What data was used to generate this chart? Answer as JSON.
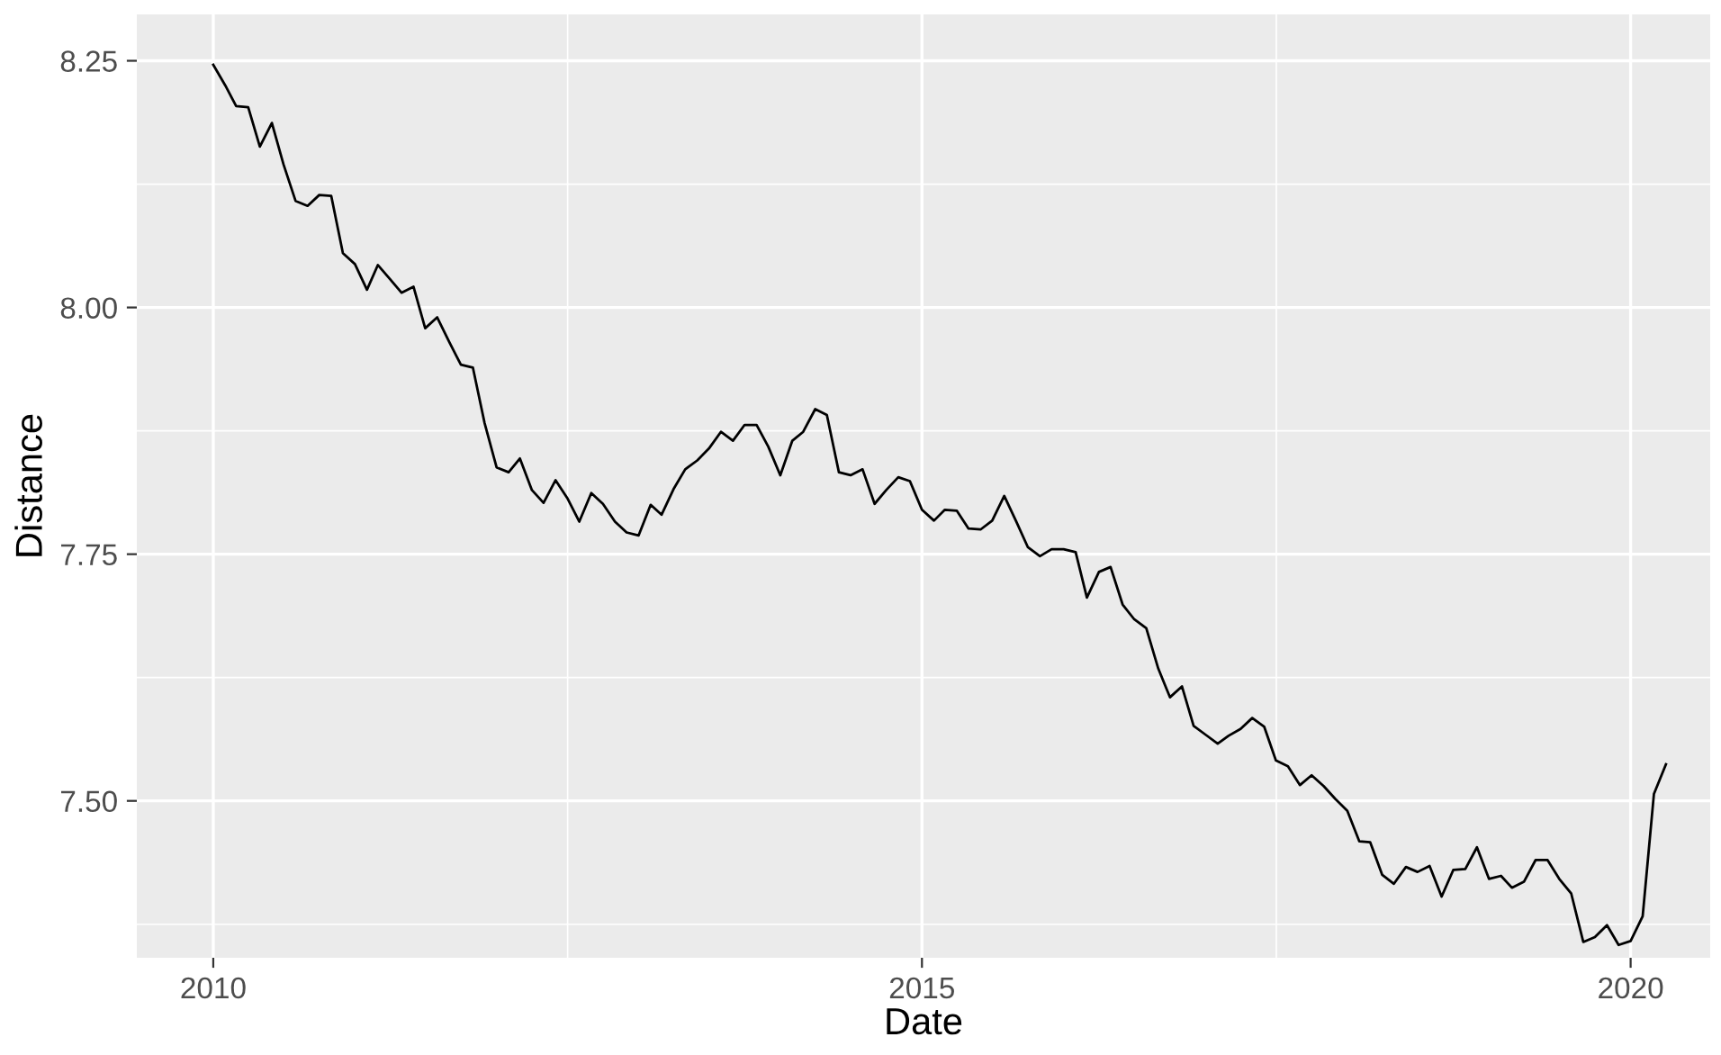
{
  "chart_data": {
    "type": "line",
    "xlabel": "Date",
    "ylabel": "Distance",
    "x": [
      "2010-01",
      "2010-02",
      "2010-03",
      "2010-04",
      "2010-05",
      "2010-06",
      "2010-07",
      "2010-08",
      "2010-09",
      "2010-10",
      "2010-11",
      "2010-12",
      "2011-01",
      "2011-02",
      "2011-03",
      "2011-04",
      "2011-05",
      "2011-06",
      "2011-07",
      "2011-08",
      "2011-09",
      "2011-10",
      "2011-11",
      "2011-12",
      "2012-01",
      "2012-02",
      "2012-03",
      "2012-04",
      "2012-05",
      "2012-06",
      "2012-07",
      "2012-08",
      "2012-09",
      "2012-10",
      "2012-11",
      "2012-12",
      "2013-01",
      "2013-02",
      "2013-03",
      "2013-04",
      "2013-05",
      "2013-06",
      "2013-07",
      "2013-08",
      "2013-09",
      "2013-10",
      "2013-11",
      "2013-12",
      "2014-01",
      "2014-02",
      "2014-03",
      "2014-04",
      "2014-05",
      "2014-06",
      "2014-07",
      "2014-08",
      "2014-09",
      "2014-10",
      "2014-11",
      "2014-12",
      "2015-01",
      "2015-02",
      "2015-03",
      "2015-04",
      "2015-05",
      "2015-06",
      "2015-07",
      "2015-08",
      "2015-09",
      "2015-10",
      "2015-11",
      "2015-12",
      "2016-01",
      "2016-02",
      "2016-03",
      "2016-04",
      "2016-05",
      "2016-06",
      "2016-07",
      "2016-08",
      "2016-09",
      "2016-10",
      "2016-11",
      "2016-12",
      "2017-01",
      "2017-02",
      "2017-03",
      "2017-04",
      "2017-05",
      "2017-06",
      "2017-07",
      "2017-08",
      "2017-09",
      "2017-10",
      "2017-11",
      "2017-12",
      "2018-01",
      "2018-02",
      "2018-03",
      "2018-04",
      "2018-05",
      "2018-06",
      "2018-07",
      "2018-08",
      "2018-09",
      "2018-10",
      "2018-11",
      "2018-12",
      "2019-01",
      "2019-02",
      "2019-03",
      "2019-04",
      "2019-05",
      "2019-06",
      "2019-07",
      "2019-08",
      "2019-09",
      "2019-10",
      "2019-11",
      "2019-12",
      "2020-01",
      "2020-02",
      "2020-03",
      "2020-04"
    ],
    "series": [
      {
        "color": "#000000",
        "values": [
          8.246,
          8.225,
          8.204,
          8.203,
          8.163,
          8.187,
          8.145,
          8.108,
          8.103,
          8.114,
          8.113,
          8.055,
          8.044,
          8.018,
          8.043,
          8.029,
          8.015,
          8.021,
          7.979,
          7.99,
          7.965,
          7.942,
          7.939,
          7.883,
          7.838,
          7.833,
          7.847,
          7.815,
          7.802,
          7.825,
          7.807,
          7.783,
          7.812,
          7.801,
          7.783,
          7.772,
          7.769,
          7.8,
          7.79,
          7.816,
          7.836,
          7.845,
          7.857,
          7.874,
          7.865,
          7.881,
          7.881,
          7.859,
          7.83,
          7.865,
          7.874,
          7.897,
          7.891,
          7.833,
          7.83,
          7.836,
          7.801,
          7.815,
          7.828,
          7.824,
          7.795,
          7.784,
          7.795,
          7.794,
          7.776,
          7.775,
          7.784,
          7.809,
          7.783,
          7.757,
          7.748,
          7.755,
          7.755,
          7.752,
          7.706,
          7.732,
          7.737,
          7.699,
          7.684,
          7.675,
          7.634,
          7.605,
          7.616,
          7.576,
          7.567,
          7.558,
          7.566,
          7.573,
          7.584,
          7.575,
          7.541,
          7.535,
          7.516,
          7.526,
          7.515,
          7.502,
          7.49,
          7.459,
          7.458,
          7.425,
          7.416,
          7.433,
          7.428,
          7.434,
          7.403,
          7.43,
          7.431,
          7.453,
          7.421,
          7.424,
          7.412,
          7.418,
          7.44,
          7.44,
          7.421,
          7.406,
          7.357,
          7.362,
          7.374,
          7.354,
          7.358,
          7.383,
          7.507,
          7.537
        ]
      }
    ],
    "xlim": [
      "2009-06-18",
      "2020-07-24"
    ],
    "xticks": [
      {
        "value": "2010-01-01",
        "label": "2010"
      },
      {
        "value": "2012-07-02",
        "label": null
      },
      {
        "value": "2015-01-01",
        "label": "2015"
      },
      {
        "value": "2017-07-02",
        "label": null
      },
      {
        "value": "2020-01-01",
        "label": "2020"
      }
    ],
    "ylim": [
      7.341,
      8.297
    ],
    "yticks": [
      {
        "value": 7.375,
        "label": null
      },
      {
        "value": 7.5,
        "label": "7.50"
      },
      {
        "value": 7.625,
        "label": null
      },
      {
        "value": 7.75,
        "label": "7.75"
      },
      {
        "value": 7.875,
        "label": null
      },
      {
        "value": 8.0,
        "label": "8.00"
      },
      {
        "value": 8.125,
        "label": null
      },
      {
        "value": 8.25,
        "label": "8.25"
      }
    ],
    "grid": true,
    "line_style": "solid",
    "marker": "none"
  }
}
